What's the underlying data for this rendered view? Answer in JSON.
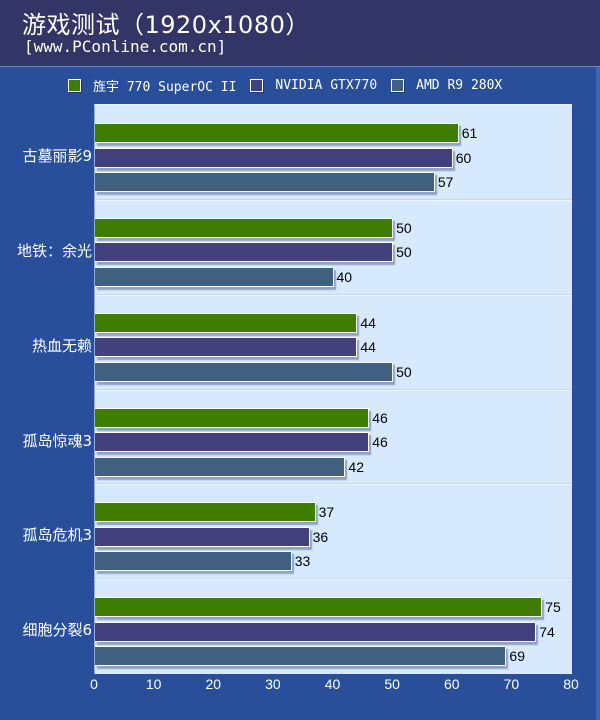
{
  "header": {
    "title": "游戏测试（1920x1080）",
    "subtitle": "[www.PConline.com.cn]"
  },
  "colors": {
    "header_bg": "#323566",
    "page_bg": "#294f9b",
    "plot_bg": "#d6e9fd",
    "series": [
      "#3e7d00",
      "#42407d",
      "#3f617f"
    ]
  },
  "chart_data": {
    "type": "bar",
    "orientation": "horizontal",
    "title": "游戏测试（1920x1080）",
    "subtitle": "[www.PConline.com.cn]",
    "categories": [
      "古墓丽影9",
      "地铁：余光",
      "热血无赖",
      "孤岛惊魂3",
      "孤岛危机3",
      "细胞分裂6"
    ],
    "series": [
      {
        "name": "旌宇 770 SuperOC II",
        "color": "#3e7d00",
        "values": [
          61,
          50,
          44,
          46,
          37,
          75
        ]
      },
      {
        "name": "NVIDIA GTX770",
        "color": "#42407d",
        "values": [
          60,
          50,
          44,
          46,
          36,
          74
        ]
      },
      {
        "name": "AMD R9 280X",
        "color": "#3f617f",
        "values": [
          57,
          40,
          50,
          42,
          33,
          69
        ]
      }
    ],
    "xlabel": "",
    "ylabel": "",
    "xlim": [
      0,
      80
    ],
    "xticks": [
      0,
      10,
      20,
      30,
      40,
      50,
      60,
      70,
      80
    ],
    "legend_position": "top",
    "grid": false,
    "data_labels": true
  }
}
